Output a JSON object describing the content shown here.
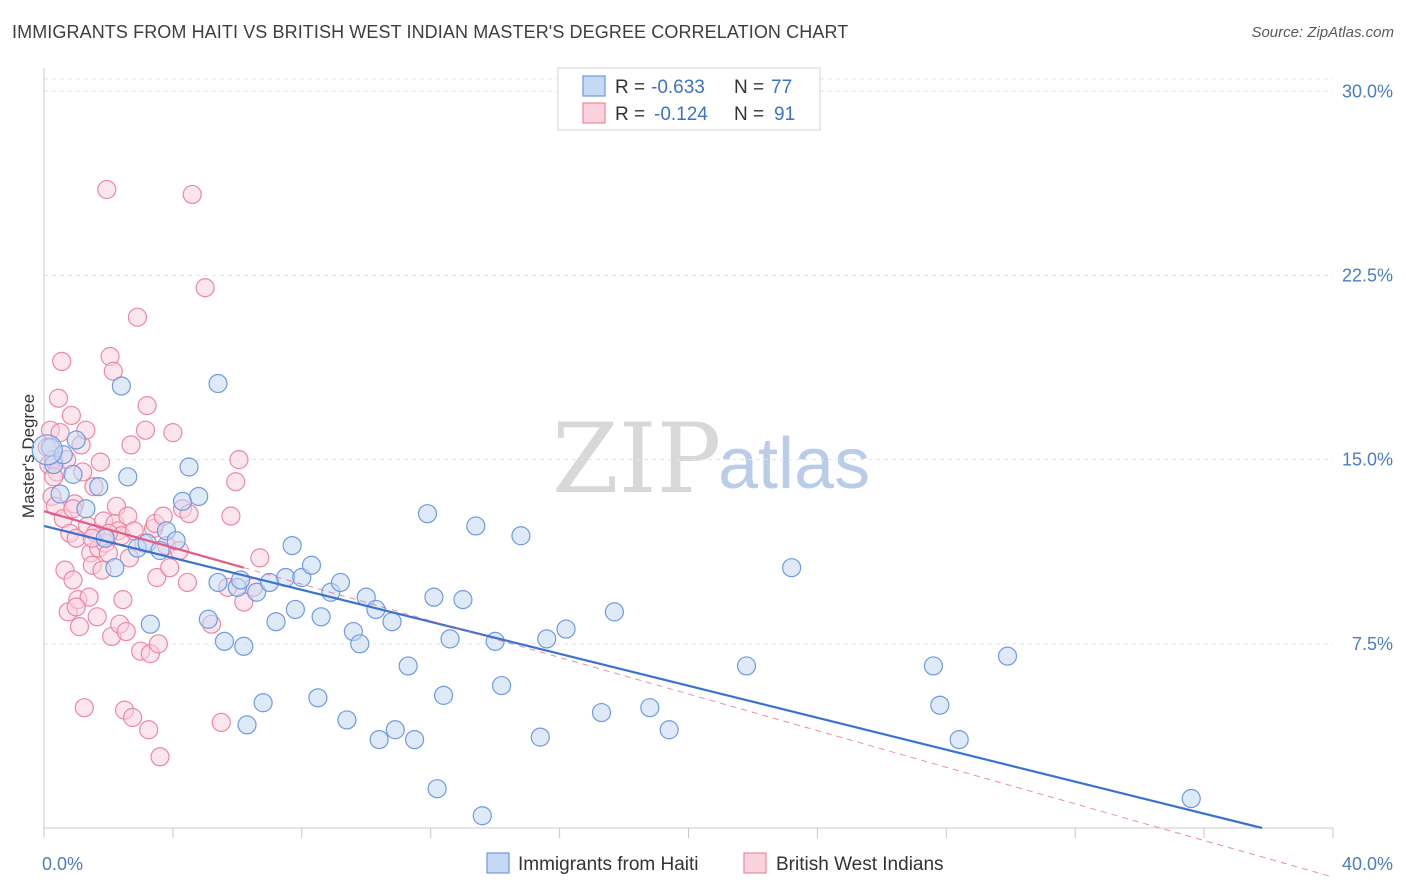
{
  "header": {
    "title": "IMMIGRANTS FROM HAITI VS BRITISH WEST INDIAN MASTER'S DEGREE CORRELATION CHART",
    "source": "Source: ZipAtlas.com"
  },
  "watermark": {
    "zip": "ZIP",
    "atlas": "atlas"
  },
  "colors": {
    "haiti": "#6f9ae0",
    "haiti_fill": "#c5d8f4",
    "haiti_line": "#3a72cf",
    "bwi": "#ee86a4",
    "bwi_fill": "#f9d2de",
    "bwi_line": "#e35c87",
    "tick_label": "#4a7cc7"
  },
  "chart_data": {
    "type": "scatter",
    "title": "IMMIGRANTS FROM HAITI VS BRITISH WEST INDIAN MASTER'S DEGREE CORRELATION CHART",
    "ylabel": "Master's Degree",
    "xlabel": "",
    "xlim": [
      0,
      40
    ],
    "ylim": [
      0,
      30.5
    ],
    "x_tick_labels": [
      "0.0%",
      "40.0%"
    ],
    "y_ticks": [
      7.5,
      15.0,
      22.5,
      30.0
    ],
    "y_tick_labels": [
      "7.5%",
      "15.0%",
      "22.5%",
      "30.0%"
    ],
    "legend": [
      {
        "r_label": "R =",
        "r_value": "-0.633",
        "n_label": "N =",
        "n_value": "77"
      },
      {
        "r_label": "R =",
        "r_value": "-0.124",
        "n_label": "N =",
        "n_value": "91"
      }
    ],
    "series": [
      {
        "name": "Immigrants from Haiti",
        "points": [
          [
            0.2,
            15.5
          ],
          [
            0.3,
            14.8
          ],
          [
            0.5,
            13.6
          ],
          [
            0.6,
            15.2
          ],
          [
            0.9,
            14.4
          ],
          [
            1.0,
            15.8
          ],
          [
            1.3,
            13.0
          ],
          [
            1.7,
            13.9
          ],
          [
            1.9,
            11.8
          ],
          [
            2.2,
            10.6
          ],
          [
            2.4,
            18.0
          ],
          [
            2.6,
            14.3
          ],
          [
            2.9,
            11.4
          ],
          [
            3.2,
            11.6
          ],
          [
            3.3,
            8.3
          ],
          [
            3.6,
            11.3
          ],
          [
            3.8,
            12.1
          ],
          [
            4.1,
            11.7
          ],
          [
            4.3,
            13.3
          ],
          [
            4.5,
            14.7
          ],
          [
            4.8,
            13.5
          ],
          [
            5.1,
            8.5
          ],
          [
            5.4,
            10.0
          ],
          [
            5.6,
            7.6
          ],
          [
            5.4,
            18.1
          ],
          [
            6.0,
            9.8
          ],
          [
            6.1,
            10.1
          ],
          [
            6.2,
            7.4
          ],
          [
            6.3,
            4.2
          ],
          [
            6.6,
            9.6
          ],
          [
            6.8,
            5.1
          ],
          [
            7.0,
            10.0
          ],
          [
            7.2,
            8.4
          ],
          [
            7.5,
            10.2
          ],
          [
            7.7,
            11.5
          ],
          [
            7.8,
            8.9
          ],
          [
            8.0,
            10.2
          ],
          [
            8.3,
            10.7
          ],
          [
            8.5,
            5.3
          ],
          [
            8.6,
            8.6
          ],
          [
            8.9,
            9.6
          ],
          [
            9.2,
            10.0
          ],
          [
            9.4,
            4.4
          ],
          [
            9.6,
            8.0
          ],
          [
            9.8,
            7.5
          ],
          [
            10.0,
            9.4
          ],
          [
            10.3,
            8.9
          ],
          [
            10.4,
            3.6
          ],
          [
            10.8,
            8.4
          ],
          [
            10.9,
            4.0
          ],
          [
            11.3,
            6.6
          ],
          [
            11.5,
            3.6
          ],
          [
            11.9,
            12.8
          ],
          [
            12.1,
            9.4
          ],
          [
            12.2,
            1.6
          ],
          [
            12.4,
            5.4
          ],
          [
            12.6,
            7.7
          ],
          [
            13.0,
            9.3
          ],
          [
            13.4,
            12.3
          ],
          [
            13.6,
            0.5
          ],
          [
            14.0,
            7.6
          ],
          [
            14.2,
            5.8
          ],
          [
            14.8,
            11.9
          ],
          [
            15.4,
            3.7
          ],
          [
            15.6,
            7.7
          ],
          [
            16.2,
            8.1
          ],
          [
            17.3,
            4.7
          ],
          [
            17.7,
            8.8
          ],
          [
            18.8,
            4.9
          ],
          [
            19.4,
            4.0
          ],
          [
            21.8,
            6.6
          ],
          [
            23.2,
            10.6
          ],
          [
            27.6,
            6.6
          ],
          [
            27.8,
            5.0
          ],
          [
            28.4,
            3.6
          ],
          [
            29.9,
            7.0
          ],
          [
            35.6,
            1.2
          ]
        ]
      },
      {
        "name": "British West Indians",
        "points": [
          [
            0.1,
            15.5
          ],
          [
            0.15,
            14.8
          ],
          [
            0.2,
            16.2
          ],
          [
            0.25,
            13.5
          ],
          [
            0.3,
            15.0
          ],
          [
            0.35,
            13.1
          ],
          [
            0.4,
            14.5
          ],
          [
            0.45,
            17.5
          ],
          [
            0.5,
            16.1
          ],
          [
            0.55,
            19.0
          ],
          [
            0.6,
            12.6
          ],
          [
            0.65,
            10.5
          ],
          [
            0.7,
            15.0
          ],
          [
            0.75,
            8.8
          ],
          [
            0.8,
            12.0
          ],
          [
            0.85,
            16.8
          ],
          [
            0.9,
            10.1
          ],
          [
            0.95,
            13.2
          ],
          [
            1.0,
            11.8
          ],
          [
            1.05,
            9.3
          ],
          [
            1.1,
            8.2
          ],
          [
            1.15,
            15.6
          ],
          [
            1.2,
            14.5
          ],
          [
            1.25,
            4.9
          ],
          [
            1.3,
            16.2
          ],
          [
            1.35,
            12.3
          ],
          [
            1.4,
            9.4
          ],
          [
            1.45,
            11.2
          ],
          [
            1.5,
            10.7
          ],
          [
            1.55,
            13.9
          ],
          [
            1.6,
            12.0
          ],
          [
            1.65,
            8.6
          ],
          [
            1.7,
            11.4
          ],
          [
            1.75,
            14.9
          ],
          [
            1.8,
            10.5
          ],
          [
            1.85,
            12.5
          ],
          [
            1.9,
            11.6
          ],
          [
            1.95,
            26.0
          ],
          [
            2.0,
            11.2
          ],
          [
            2.05,
            19.2
          ],
          [
            2.1,
            7.8
          ],
          [
            2.15,
            18.6
          ],
          [
            2.2,
            12.4
          ],
          [
            2.25,
            13.1
          ],
          [
            2.3,
            12.1
          ],
          [
            2.35,
            8.3
          ],
          [
            2.4,
            11.9
          ],
          [
            2.45,
            9.3
          ],
          [
            2.5,
            4.8
          ],
          [
            2.55,
            8.0
          ],
          [
            2.6,
            12.7
          ],
          [
            2.65,
            11.0
          ],
          [
            2.7,
            15.6
          ],
          [
            2.75,
            4.5
          ],
          [
            2.8,
            12.1
          ],
          [
            2.9,
            20.8
          ],
          [
            3.0,
            7.2
          ],
          [
            3.1,
            11.6
          ],
          [
            3.15,
            16.2
          ],
          [
            3.2,
            17.2
          ],
          [
            3.25,
            4.0
          ],
          [
            3.3,
            7.1
          ],
          [
            3.4,
            12.2
          ],
          [
            3.45,
            12.4
          ],
          [
            3.5,
            10.2
          ],
          [
            3.55,
            7.5
          ],
          [
            3.6,
            2.9
          ],
          [
            3.7,
            12.7
          ],
          [
            3.8,
            11.5
          ],
          [
            3.9,
            10.6
          ],
          [
            4.0,
            16.1
          ],
          [
            4.2,
            11.3
          ],
          [
            4.3,
            13.0
          ],
          [
            4.45,
            10.0
          ],
          [
            4.5,
            12.8
          ],
          [
            4.6,
            25.8
          ],
          [
            5.0,
            22.0
          ],
          [
            5.2,
            8.3
          ],
          [
            5.5,
            4.3
          ],
          [
            5.7,
            9.8
          ],
          [
            5.8,
            12.7
          ],
          [
            5.95,
            14.1
          ],
          [
            6.05,
            15.0
          ],
          [
            6.2,
            9.2
          ],
          [
            6.5,
            9.8
          ],
          [
            6.7,
            11.0
          ],
          [
            0.3,
            14.3
          ],
          [
            0.9,
            13.0
          ],
          [
            1.5,
            11.8
          ],
          [
            2.0,
            12.0
          ],
          [
            1.0,
            9.0
          ]
        ]
      }
    ],
    "trendlines": [
      {
        "series": "Immigrants from Haiti",
        "from": [
          0,
          12.3
        ],
        "to": [
          37.8,
          0
        ]
      },
      {
        "series": "British West Indians",
        "from": [
          0,
          12.9
        ],
        "to": [
          6.2,
          10.6
        ]
      },
      {
        "series": "British West Indians",
        "style": "dashed",
        "from": [
          6.2,
          10.6
        ],
        "to": [
          40,
          -2.0
        ]
      }
    ]
  }
}
